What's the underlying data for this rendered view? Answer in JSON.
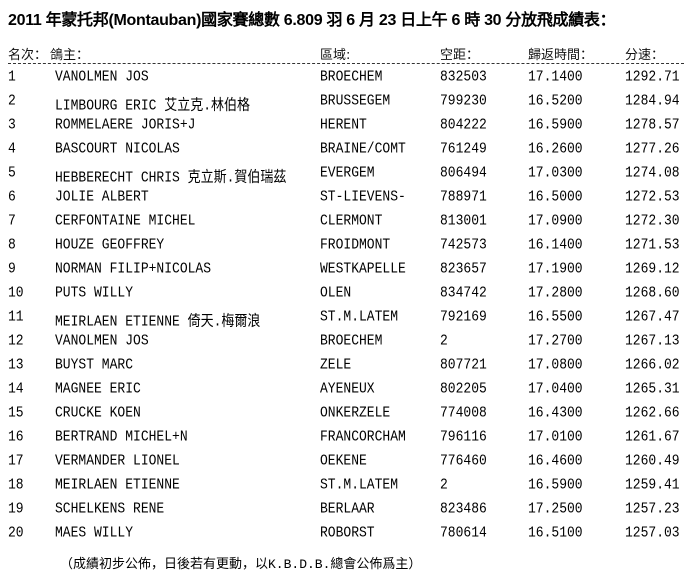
{
  "title": "2011 年蒙托邦(Montauban)國家賽總數 6.809 羽 6 月 23 日上午 6 時 30 分放飛成績表：",
  "headers": [
    "名次：",
    "鴿主：",
    "區域:",
    "空距：",
    "歸返時間：",
    "分速："
  ],
  "rows": [
    [
      "1",
      "VANOLMEN JOS",
      "BROECHEM",
      "832503",
      "17.1400",
      "1292.71"
    ],
    [
      "2",
      "LIMBOURG ERIC   艾立克.林伯格",
      "BRUSSEGEM",
      "799230",
      "16.5200",
      "1284.94"
    ],
    [
      "3",
      "ROMMELAERE JORIS+J",
      "HERENT",
      "804222",
      "16.5900",
      "1278.57"
    ],
    [
      "4",
      "BASCOURT NICOLAS",
      "BRAINE/COMT",
      "761249",
      "16.2600",
      "1277.26"
    ],
    [
      "5",
      "HEBBERECHT CHRIS 克立斯.賀伯瑞茲",
      "EVERGEM",
      "806494",
      "17.0300",
      "1274.08"
    ],
    [
      "6",
      "JOLIE ALBERT",
      "ST-LIEVENS-",
      "788971",
      "16.5000",
      "1272.53"
    ],
    [
      "7",
      "CERFONTAINE MICHEL",
      "CLERMONT",
      "813001",
      "17.0900",
      "1272.30"
    ],
    [
      "8",
      "HOUZE GEOFFREY",
      "FROIDMONT",
      "742573",
      "16.1400",
      "1271.53"
    ],
    [
      "9",
      "NORMAN FILIP+NICOLAS",
      "WESTKAPELLE",
      "823657",
      "17.1900",
      "1269.12"
    ],
    [
      "10",
      "PUTS WILLY",
      "OLEN",
      "834742",
      "17.2800",
      "1268.60"
    ],
    [
      "11",
      "MEIRLAEN ETIENNE 倚天.梅爾浪",
      "ST.M.LATEM",
      "792169",
      "16.5500",
      "1267.47"
    ],
    [
      "12",
      "VANOLMEN JOS",
      "BROECHEM",
      "2",
      "17.2700",
      "1267.13"
    ],
    [
      "13",
      "BUYST MARC",
      "ZELE",
      "807721",
      "17.0800",
      "1266.02"
    ],
    [
      "14",
      "MAGNEE ERIC",
      "AYENEUX",
      "802205",
      "17.0400",
      "1265.31"
    ],
    [
      "15",
      "CRUCKE KOEN",
      "ONKERZELE",
      "774008",
      "16.4300",
      "1262.66"
    ],
    [
      "16",
      "BERTRAND MICHEL+N",
      "FRANCORCHAM",
      "796116",
      "17.0100",
      "1261.67"
    ],
    [
      "17",
      "VERMANDER LIONEL",
      "OEKENE",
      "776460",
      "16.4600",
      "1260.49"
    ],
    [
      "18",
      "MEIRLAEN ETIENNE",
      "ST.M.LATEM",
      "2",
      "16.5900",
      "1259.41"
    ],
    [
      "19",
      "SCHELKENS RENE",
      "BERLAAR",
      "823486",
      "17.2500",
      "1257.23"
    ],
    [
      "20",
      "MAES WILLY",
      "ROBORST",
      "780614",
      "16.5100",
      "1257.03"
    ]
  ],
  "footer": "（成績初步公佈，日後若有更動，以K.B.D.B.總會公佈爲主）"
}
